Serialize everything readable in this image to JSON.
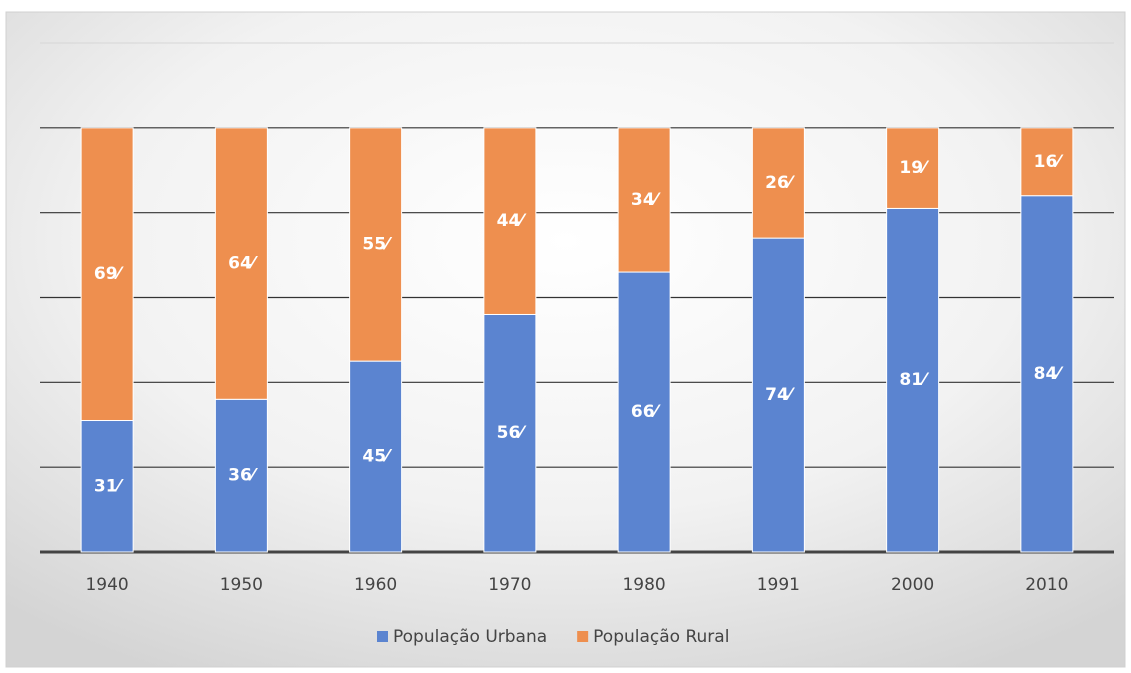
{
  "chart_data": {
    "type": "stacked_bar",
    "categories": [
      "1940",
      "1950",
      "1960",
      "1970",
      "1980",
      "1991",
      "2000",
      "2010"
    ],
    "series": [
      {
        "name": "População Urbana",
        "color": "#5b84d0",
        "values": [
          31,
          36,
          45,
          56,
          66,
          74,
          81,
          84
        ],
        "value_labels": [
          "31⁄",
          "36⁄",
          "45⁄",
          "56⁄",
          "66⁄",
          "74⁄",
          "81⁄",
          "84⁄"
        ]
      },
      {
        "name": "População Rural",
        "color": "#ee8f4f",
        "values": [
          69,
          64,
          55,
          44,
          34,
          26,
          19,
          16
        ],
        "value_labels": [
          "69⁄",
          "64⁄",
          "55⁄",
          "44⁄",
          "34⁄",
          "26⁄",
          "19⁄",
          "16⁄"
        ]
      }
    ],
    "ylim": [
      0,
      120
    ],
    "yticks": [
      0,
      20,
      40,
      60,
      80,
      100,
      120
    ],
    "grid": true,
    "legend": "bottom"
  }
}
